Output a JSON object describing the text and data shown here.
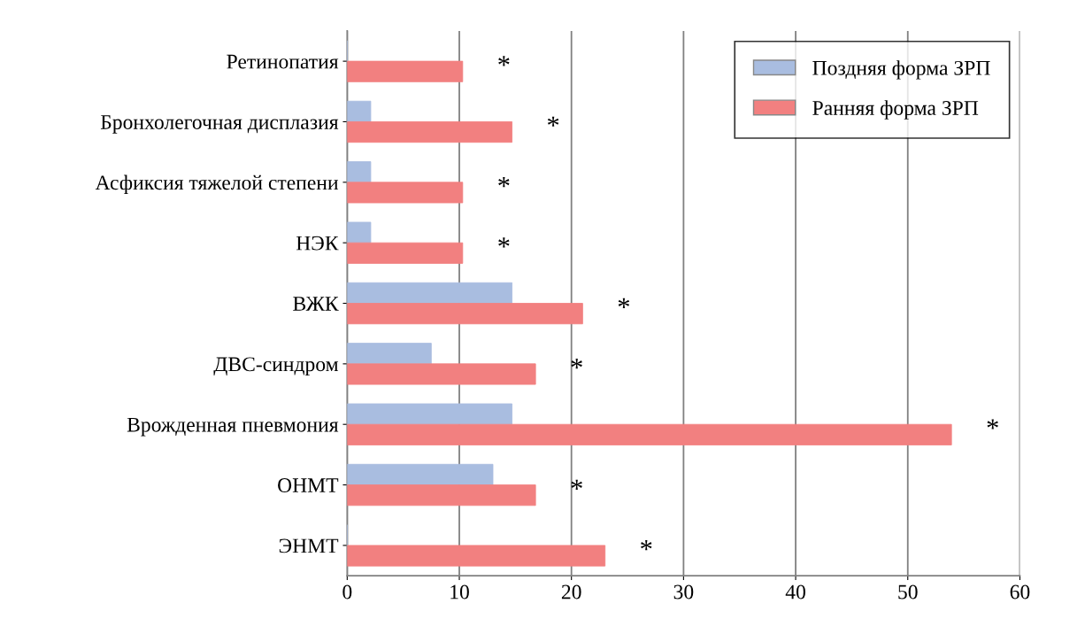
{
  "chart_data": {
    "type": "bar",
    "orientation": "horizontal",
    "categories": [
      "Ретинопатия",
      "Бронхолегочная дисплазия",
      "Асфиксия тяжелой степени",
      "НЭК",
      "ВЖК",
      "ДВС-синдром",
      "Врожденная пневмония",
      "ОНМТ",
      "ЭНМТ"
    ],
    "series": [
      {
        "name": "Поздняя форма ЗРП",
        "color": "#a9bde0",
        "values": [
          0,
          2.1,
          2.1,
          2.1,
          14.7,
          7.5,
          14.7,
          13,
          0
        ]
      },
      {
        "name": "Ранняя форма ЗРП",
        "color": "#f28080",
        "values": [
          10.3,
          14.7,
          10.3,
          10.3,
          21,
          16.8,
          53.9,
          16.8,
          23
        ]
      }
    ],
    "xlim": [
      0,
      60
    ],
    "xticks": [
      0,
      10,
      20,
      30,
      40,
      50,
      60
    ],
    "grid": "x",
    "legend": "top right",
    "annotations": [
      "*",
      "*",
      "*",
      "*",
      "*",
      "*",
      "*",
      "*",
      "*"
    ]
  }
}
